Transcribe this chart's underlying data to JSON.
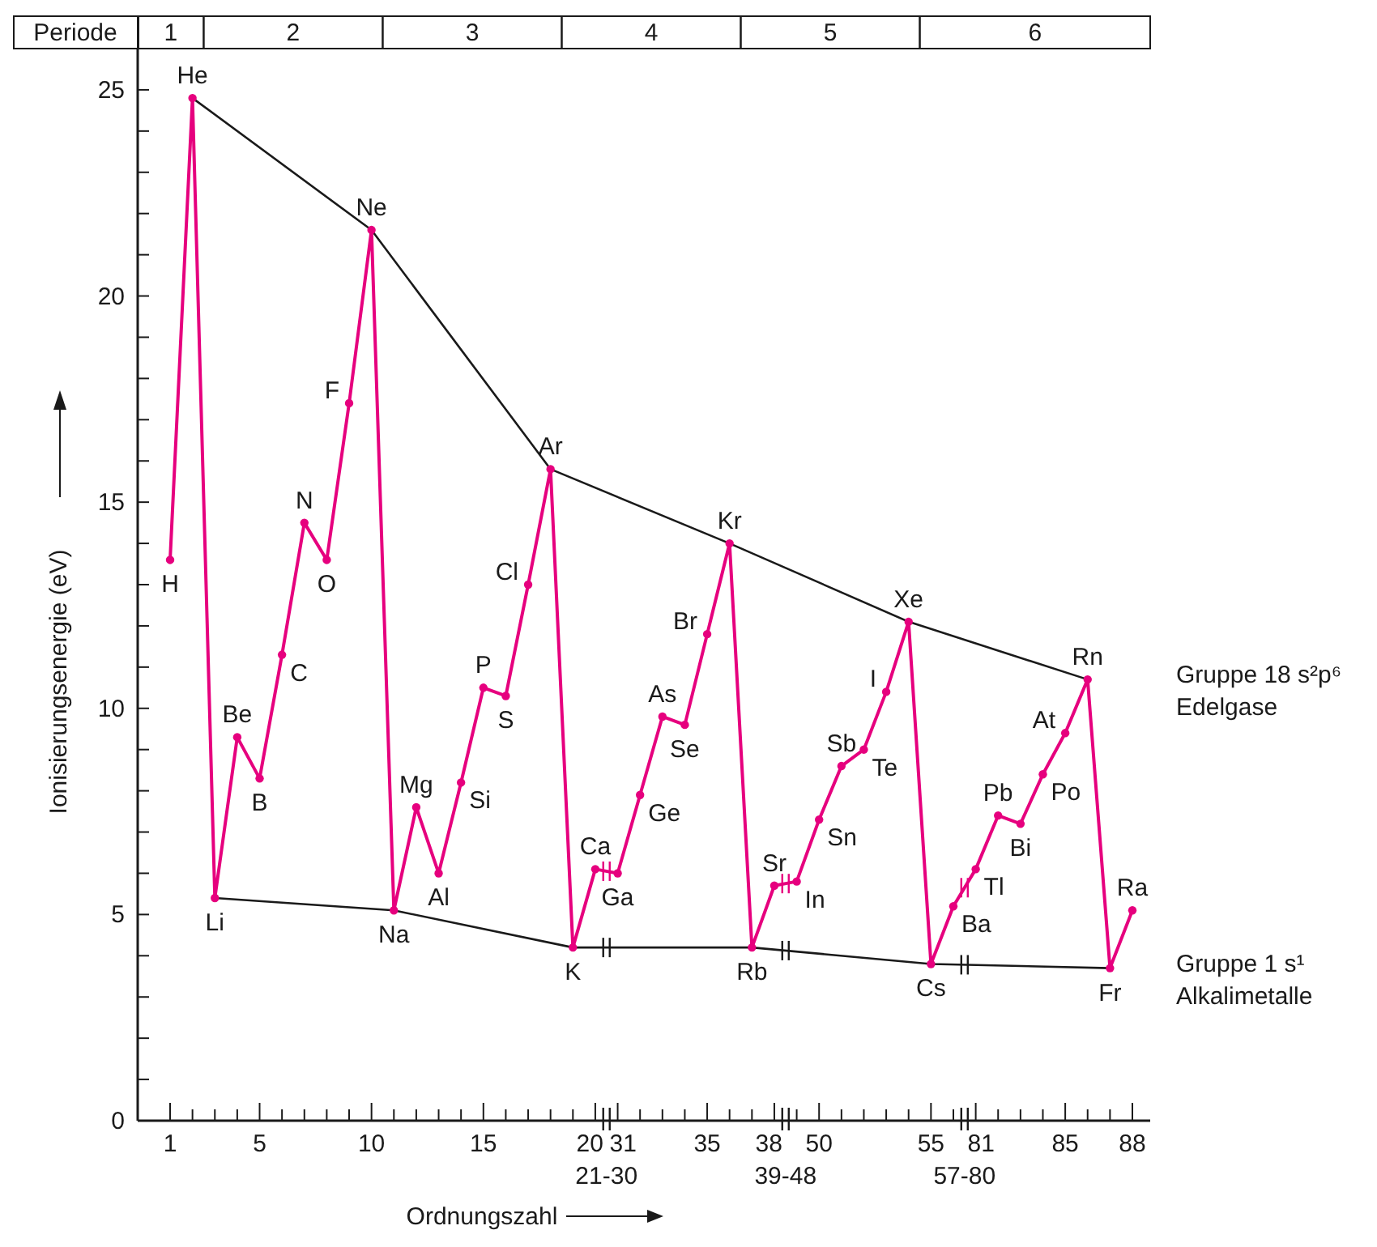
{
  "chart_data": {
    "type": "line",
    "xlabel": "Ordnungszahl",
    "ylabel": "Ionisierungsenergie (eV)",
    "categories": [
      "1",
      null,
      null,
      null,
      "5",
      null,
      null,
      null,
      null,
      "10",
      null,
      null,
      null,
      null,
      "15",
      null,
      null,
      null,
      null,
      "20",
      "31",
      null,
      null,
      null,
      "35",
      null,
      null,
      "38",
      null,
      "50",
      null,
      null,
      null,
      null,
      "55",
      null,
      "81",
      null,
      null,
      null,
      "85",
      null,
      null,
      "88"
    ],
    "series": [
      {
        "color": "#e6007e",
        "marker": "circle",
        "values": [
          13.6,
          24.8,
          5.4,
          9.3,
          8.3,
          11.3,
          14.5,
          13.6,
          17.4,
          21.6,
          5.1,
          7.6,
          6.0,
          8.2,
          10.5,
          10.3,
          13.0,
          15.8,
          4.2,
          6.1,
          6.0,
          7.9,
          9.8,
          9.6,
          11.8,
          14.0,
          4.2,
          5.7,
          5.8,
          7.3,
          8.6,
          9.0,
          10.4,
          12.1,
          3.8,
          5.2,
          6.1,
          7.4,
          7.2,
          8.4,
          9.4,
          10.7,
          3.7,
          5.1
        ],
        "value_labels": [
          "H",
          "He",
          "Li",
          "Be",
          "B",
          "C",
          "N",
          "O",
          "F",
          "Ne",
          "Na",
          "Mg",
          "Al",
          "Si",
          "P",
          "S",
          "Cl",
          "Ar",
          "K",
          "Ca",
          "Ga",
          "Ge",
          "As",
          "Se",
          "Br",
          "Kr",
          "Rb",
          "Sr",
          "In",
          "Sn",
          "Sb",
          "Te",
          "I",
          "Xe",
          "Cs",
          "Ba",
          "Tl",
          "Pb",
          "Bi",
          "Po",
          "At",
          "Rn",
          "Fr",
          "Ra"
        ]
      },
      {
        "name": "Gruppe 18 s²p⁶ Edelgase",
        "color": "#1a1a1a",
        "marker": "none",
        "values": [
          null,
          24.8,
          null,
          null,
          null,
          null,
          null,
          null,
          null,
          21.6,
          null,
          null,
          null,
          null,
          null,
          null,
          null,
          15.8,
          null,
          null,
          null,
          null,
          null,
          null,
          null,
          14.0,
          null,
          null,
          null,
          null,
          null,
          null,
          null,
          12.1,
          null,
          null,
          null,
          null,
          null,
          null,
          null,
          10.7,
          null,
          null
        ]
      },
      {
        "name": "Gruppe 1 s¹ Alkalimetalle",
        "color": "#1a1a1a",
        "marker": "none",
        "values": [
          null,
          null,
          5.4,
          null,
          null,
          null,
          null,
          null,
          null,
          null,
          5.1,
          null,
          null,
          null,
          null,
          null,
          null,
          null,
          4.2,
          null,
          null,
          null,
          null,
          null,
          null,
          null,
          4.2,
          null,
          null,
          null,
          null,
          null,
          null,
          null,
          3.8,
          null,
          null,
          null,
          null,
          null,
          null,
          null,
          3.7,
          null
        ]
      }
    ],
    "ylim": [
      0,
      26
    ],
    "yticks": [
      0,
      {
        "value": 1,
        "label": null
      },
      {
        "value": 2,
        "label": null
      },
      {
        "value": 3,
        "label": null
      },
      {
        "value": 4,
        "label": null
      },
      5,
      {
        "value": 6,
        "label": null
      },
      {
        "value": 7,
        "label": null
      },
      {
        "value": 8,
        "label": null
      },
      {
        "value": 9,
        "label": null
      },
      10,
      {
        "value": 11,
        "label": null
      },
      {
        "value": 12,
        "label": null
      },
      {
        "value": 13,
        "label": null
      },
      {
        "value": 14,
        "label": null
      },
      15,
      {
        "value": 16,
        "label": null
      },
      {
        "value": 17,
        "label": null
      },
      {
        "value": 18,
        "label": null
      },
      {
        "value": 19,
        "label": null
      },
      20,
      {
        "value": 21,
        "label": null
      },
      {
        "value": 22,
        "label": null
      },
      {
        "value": 23,
        "label": null
      },
      {
        "value": 24,
        "label": null
      },
      25,
      {
        "value": 26,
        "label": null
      }
    ],
    "grid": false,
    "annotations": [
      "Periode",
      "1",
      "2",
      "3",
      "4",
      "5",
      "6",
      "21-30",
      "39-48",
      "57-80"
    ]
  }
}
